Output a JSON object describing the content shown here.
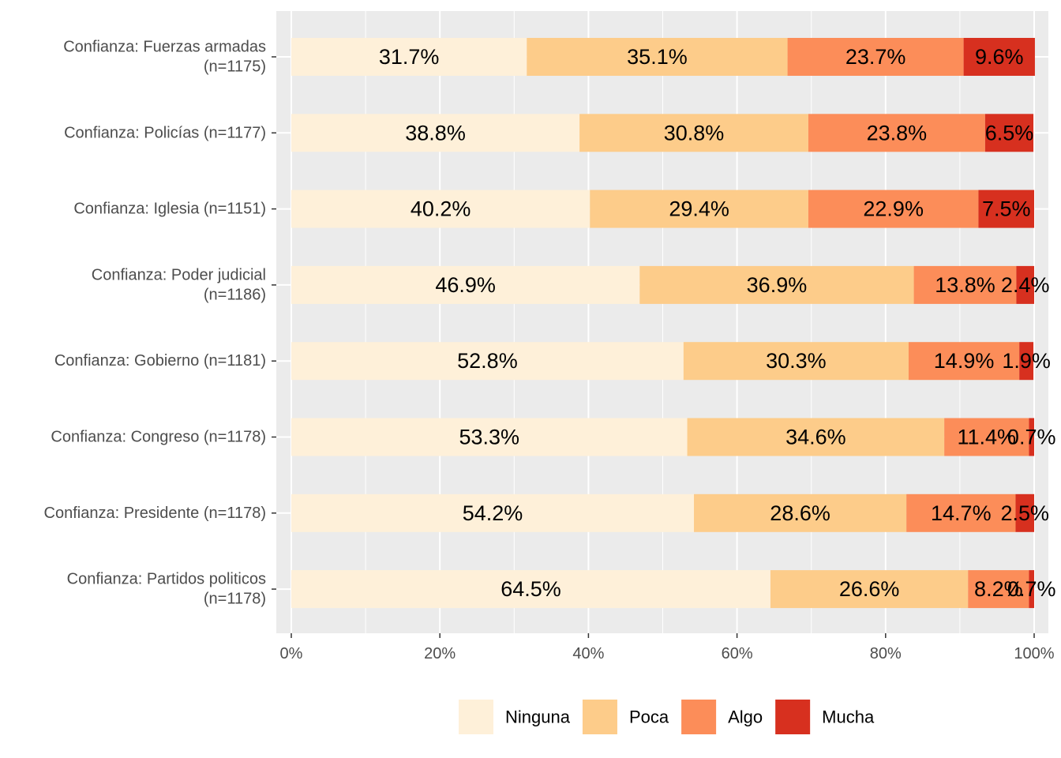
{
  "chart_data": {
    "type": "bar",
    "orientation": "horizontal",
    "stacked": "percent",
    "categories": [
      [
        "Confianza: Fuerzas armadas",
        "(n=1175)"
      ],
      [
        "Confianza: Policías (n=1177)"
      ],
      [
        "Confianza: Iglesia (n=1151)"
      ],
      [
        "Confianza: Poder judicial",
        "(n=1186)"
      ],
      [
        "Confianza: Gobierno (n=1181)"
      ],
      [
        "Confianza: Congreso (n=1178)"
      ],
      [
        "Confianza: Presidente (n=1178)"
      ],
      [
        "Confianza: Partidos politicos",
        "(n=1178)"
      ]
    ],
    "series": [
      {
        "name": "Ninguna",
        "color": "#fef0d9",
        "values": [
          31.7,
          38.8,
          40.2,
          46.9,
          52.8,
          53.3,
          54.2,
          64.5
        ],
        "labels": [
          "31.7%",
          "38.8%",
          "40.2%",
          "46.9%",
          "52.8%",
          "53.3%",
          "54.2%",
          "64.5%"
        ]
      },
      {
        "name": "Poca",
        "color": "#fdcc8a",
        "values": [
          35.1,
          30.8,
          29.4,
          36.9,
          30.3,
          34.6,
          28.6,
          26.6
        ],
        "labels": [
          "35.1%",
          "30.8%",
          "29.4%",
          "36.9%",
          "30.3%",
          "34.6%",
          "28.6%",
          "26.6%"
        ]
      },
      {
        "name": "Algo",
        "color": "#fc8d59",
        "values": [
          23.7,
          23.8,
          22.9,
          13.8,
          14.9,
          11.4,
          14.7,
          8.2
        ],
        "labels": [
          "23.7%",
          "23.8%",
          "22.9%",
          "13.8%",
          "14.9%",
          "11.4%",
          "14.7%",
          "8.2%"
        ]
      },
      {
        "name": "Mucha",
        "color": "#d7301f",
        "values": [
          9.6,
          6.5,
          7.5,
          2.4,
          1.9,
          0.7,
          2.5,
          0.7
        ],
        "labels": [
          "9.6%",
          "6.5%",
          "7.5%",
          "2.4%",
          "1.9%",
          "0.7%",
          "2.5%",
          "0.7%"
        ]
      }
    ],
    "x_ticks": [
      "0%",
      "20%",
      "40%",
      "60%",
      "80%",
      "100%"
    ],
    "xlim": [
      0,
      100
    ],
    "grid": true,
    "legend_position": "bottom",
    "panel_background": "#ebebeb",
    "grid_color": "#ffffff"
  }
}
